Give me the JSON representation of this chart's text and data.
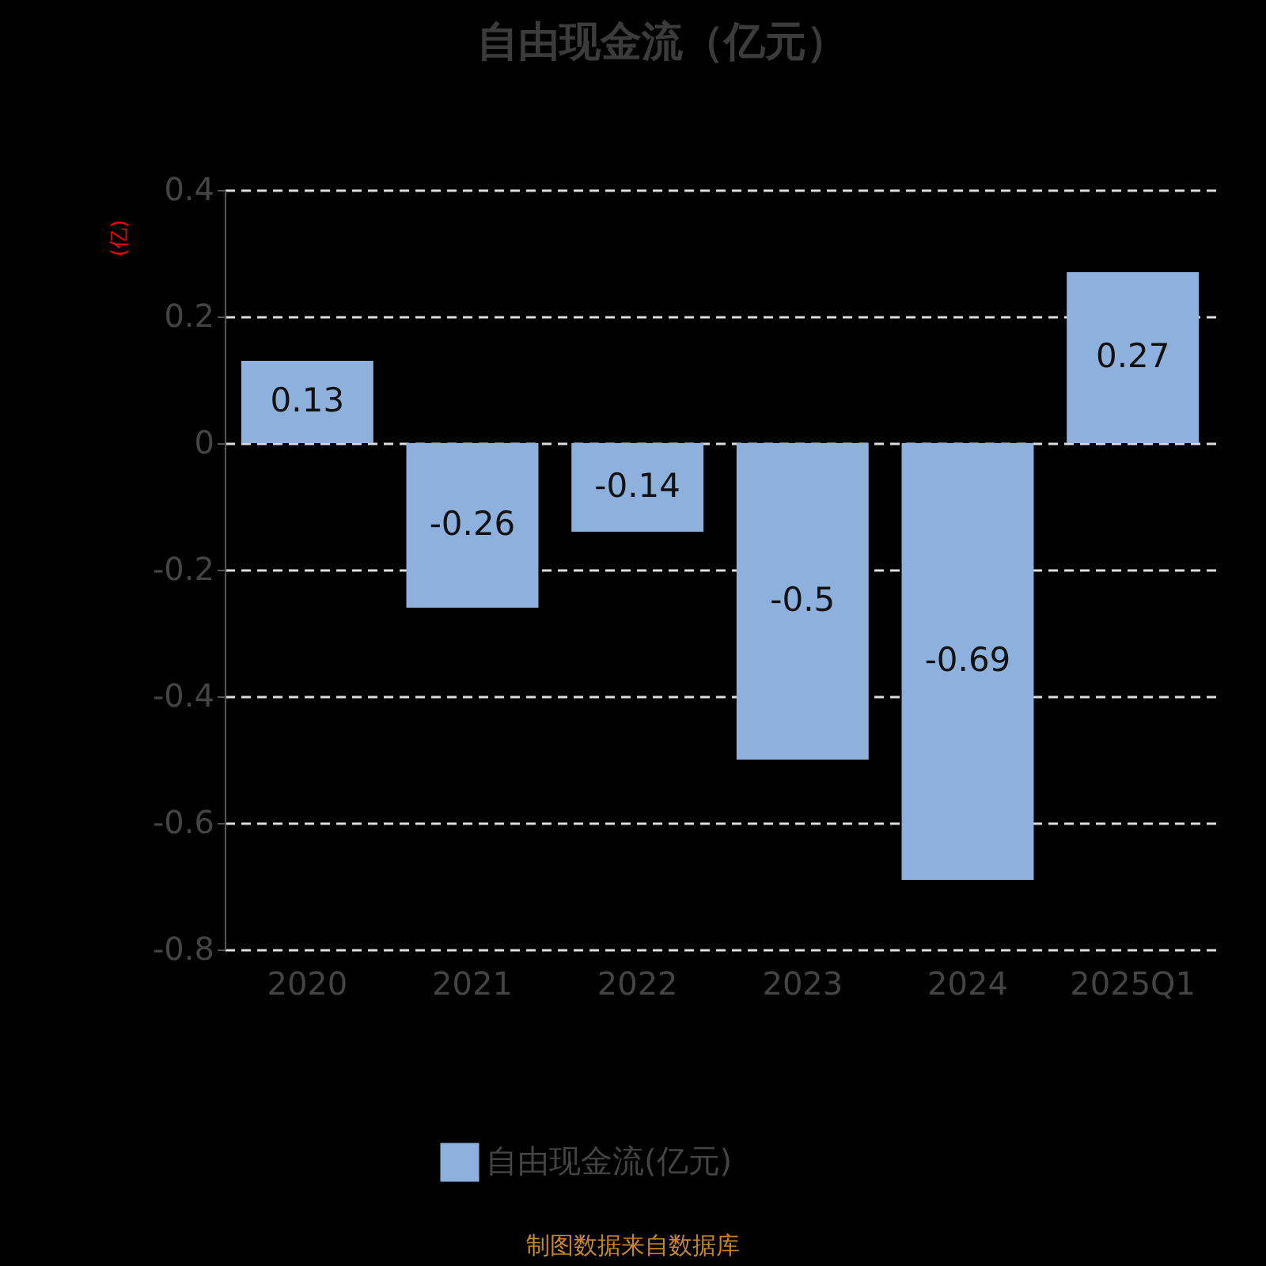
{
  "chart_data": {
    "type": "bar",
    "title": "自由现金流（亿元）",
    "ylabel": "(亿)",
    "categories": [
      "2020",
      "2021",
      "2022",
      "2023",
      "2024",
      "2025Q1"
    ],
    "series": [
      {
        "name": "自由现金流(亿元)",
        "color": "#8eb0dc",
        "values": [
          0.13,
          -0.26,
          -0.14,
          -0.5,
          -0.69,
          0.27
        ]
      }
    ],
    "ylim": [
      -0.8,
      0.4
    ],
    "yticks": [
      -0.8,
      -0.6,
      -0.4,
      -0.2,
      0,
      0.2,
      0.4
    ],
    "grid": "y",
    "legend": "bottom",
    "data_labels": true,
    "annotations": [
      "制图数据来自数据库"
    ]
  }
}
